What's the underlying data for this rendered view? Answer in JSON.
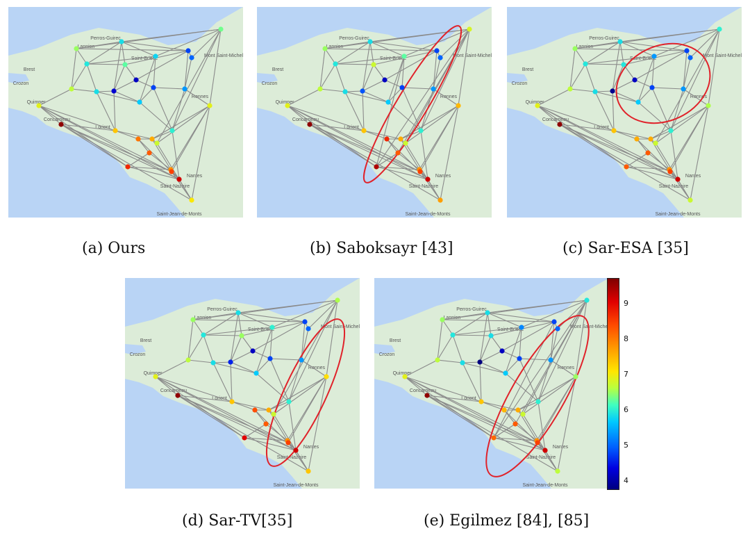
{
  "figure": {
    "captions": [
      "(a)  Ours",
      "(b)  Saboksayr [43]",
      "(c)  Sar-ESA [35]",
      "(d)  Sar-TV[35]",
      "(e)  Egilmez [84], [85]"
    ]
  },
  "colorbar": {
    "ticks": [
      "9",
      "8",
      "7",
      "6",
      "5",
      "4"
    ],
    "range": [
      3.8,
      9.7
    ],
    "colors": [
      "#00007f",
      "#0000e0",
      "#0060ff",
      "#00c8ff",
      "#40ffc0",
      "#b8ff40",
      "#ffe600",
      "#ff9a00",
      "#ff4a00",
      "#e00000",
      "#7f0000"
    ]
  },
  "map": {
    "labels": [
      "Brest",
      "Crozon",
      "Quimper",
      "Lorient",
      "Rennes",
      "Nantes",
      "Mont Saint-Michel",
      "Saint-Brieuc",
      "Saint-Nazaire",
      "Saint-Jean-de-Monts",
      "Perros-Guirec",
      "Lannion",
      "Concarneau"
    ],
    "sea_color": "#b9d4f5",
    "land_color": "#dcecd8",
    "edge_color": "#8a8a8a",
    "highlight_color": "#e0222a"
  },
  "stations": [
    {
      "id": 0,
      "value": 6.4
    },
    {
      "id": 1,
      "value": 6.6
    },
    {
      "id": 2,
      "value": 5.8
    },
    {
      "id": 3,
      "value": 5.9
    },
    {
      "id": 4,
      "value": 6.3
    },
    {
      "id": 5,
      "value": 4.2
    },
    {
      "id": 6,
      "value": 4.8
    },
    {
      "id": 7,
      "value": 5.0
    },
    {
      "id": 8,
      "value": 5.7
    },
    {
      "id": 9,
      "value": 6.8
    },
    {
      "id": 10,
      "value": 5.8
    },
    {
      "id": 11,
      "value": 4.8
    },
    {
      "id": 12,
      "value": 4.3
    },
    {
      "id": 13,
      "value": 5.6
    },
    {
      "id": 14,
      "value": 5.3
    },
    {
      "id": 15,
      "value": 7.1
    },
    {
      "id": 16,
      "value": 7.1
    },
    {
      "id": 17,
      "value": 9.6
    },
    {
      "id": 18,
      "value": 7.6
    },
    {
      "id": 19,
      "value": 6.0
    },
    {
      "id": 20,
      "value": 8.2
    },
    {
      "id": 21,
      "value": 7.8
    },
    {
      "id": 22,
      "value": 6.9
    },
    {
      "id": 23,
      "value": 8.4
    },
    {
      "id": 24,
      "value": 8.8
    },
    {
      "id": 25,
      "value": 9.2
    },
    {
      "id": 26,
      "value": 8.0
    },
    {
      "id": 27,
      "value": 8.6
    },
    {
      "id": 28,
      "value": 7.3
    }
  ]
}
